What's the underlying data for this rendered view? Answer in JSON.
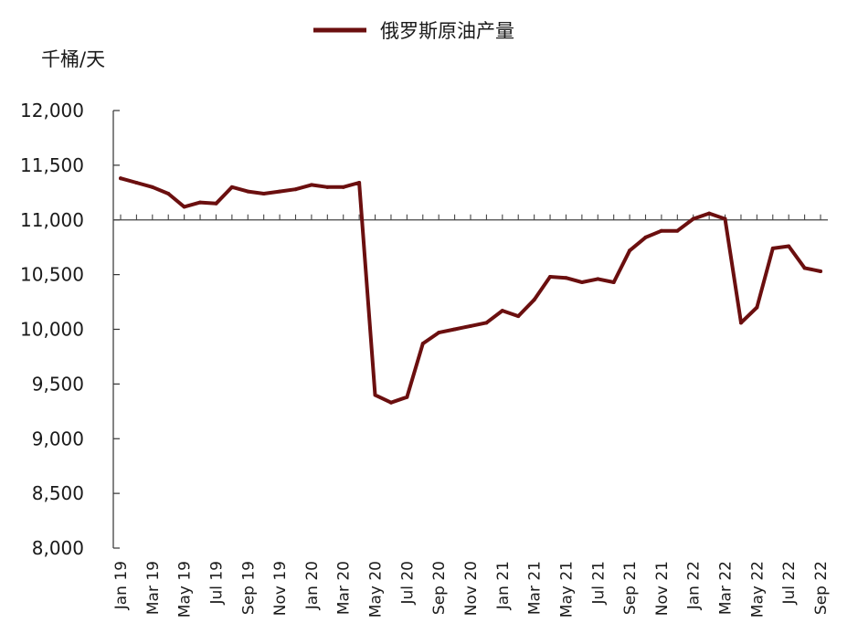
{
  "chart_data": {
    "type": "line",
    "unit_label": "千桶/天",
    "legend_position": "top-center",
    "grid": false,
    "series_color": "#6b0f0f",
    "ylim": [
      8000,
      12000
    ],
    "reference_line": 11000,
    "y_ticks": [
      {
        "value": 12000,
        "label": "12,000"
      },
      {
        "value": 11500,
        "label": "11,500"
      },
      {
        "value": 11000,
        "label": "11,000"
      },
      {
        "value": 10500,
        "label": "10,500"
      },
      {
        "value": 10000,
        "label": "10,000"
      },
      {
        "value": 9500,
        "label": "9,500"
      },
      {
        "value": 9000,
        "label": "9,000"
      },
      {
        "value": 8500,
        "label": "8,500"
      },
      {
        "value": 8000,
        "label": "8,000"
      }
    ],
    "x_tick_labels": [
      "Jan 19",
      "Mar 19",
      "May 19",
      "Jul 19",
      "Sep 19",
      "Nov 19",
      "Jan 20",
      "Mar 20",
      "May 20",
      "Jul 20",
      "Sep 20",
      "Nov 20",
      "Jan 21",
      "Mar 21",
      "May 21",
      "Jul 21",
      "Sep 21",
      "Nov 21",
      "Jan 22",
      "Mar 22",
      "May 22",
      "Jul 22",
      "Sep 22"
    ],
    "x": [
      "2019-01",
      "2019-02",
      "2019-03",
      "2019-04",
      "2019-05",
      "2019-06",
      "2019-07",
      "2019-08",
      "2019-09",
      "2019-10",
      "2019-11",
      "2019-12",
      "2020-01",
      "2020-02",
      "2020-03",
      "2020-04",
      "2020-05",
      "2020-06",
      "2020-07",
      "2020-08",
      "2020-09",
      "2020-10",
      "2020-11",
      "2020-12",
      "2021-01",
      "2021-02",
      "2021-03",
      "2021-04",
      "2021-05",
      "2021-06",
      "2021-07",
      "2021-08",
      "2021-09",
      "2021-10",
      "2021-11",
      "2021-12",
      "2022-01",
      "2022-02",
      "2022-03",
      "2022-04",
      "2022-05",
      "2022-06",
      "2022-07",
      "2022-08",
      "2022-09"
    ],
    "series": [
      {
        "name": "俄罗斯原油产量",
        "values": [
          11380,
          11340,
          11300,
          11240,
          11120,
          11160,
          11150,
          11300,
          11260,
          11240,
          11260,
          11280,
          11320,
          11300,
          11300,
          11340,
          9400,
          9330,
          9380,
          9870,
          9970,
          10000,
          10030,
          10060,
          10170,
          10120,
          10270,
          10480,
          10470,
          10430,
          10460,
          10430,
          10720,
          10840,
          10900,
          10900,
          11010,
          11060,
          11010,
          10060,
          10200,
          10740,
          10760,
          10560,
          10530
        ]
      }
    ]
  }
}
